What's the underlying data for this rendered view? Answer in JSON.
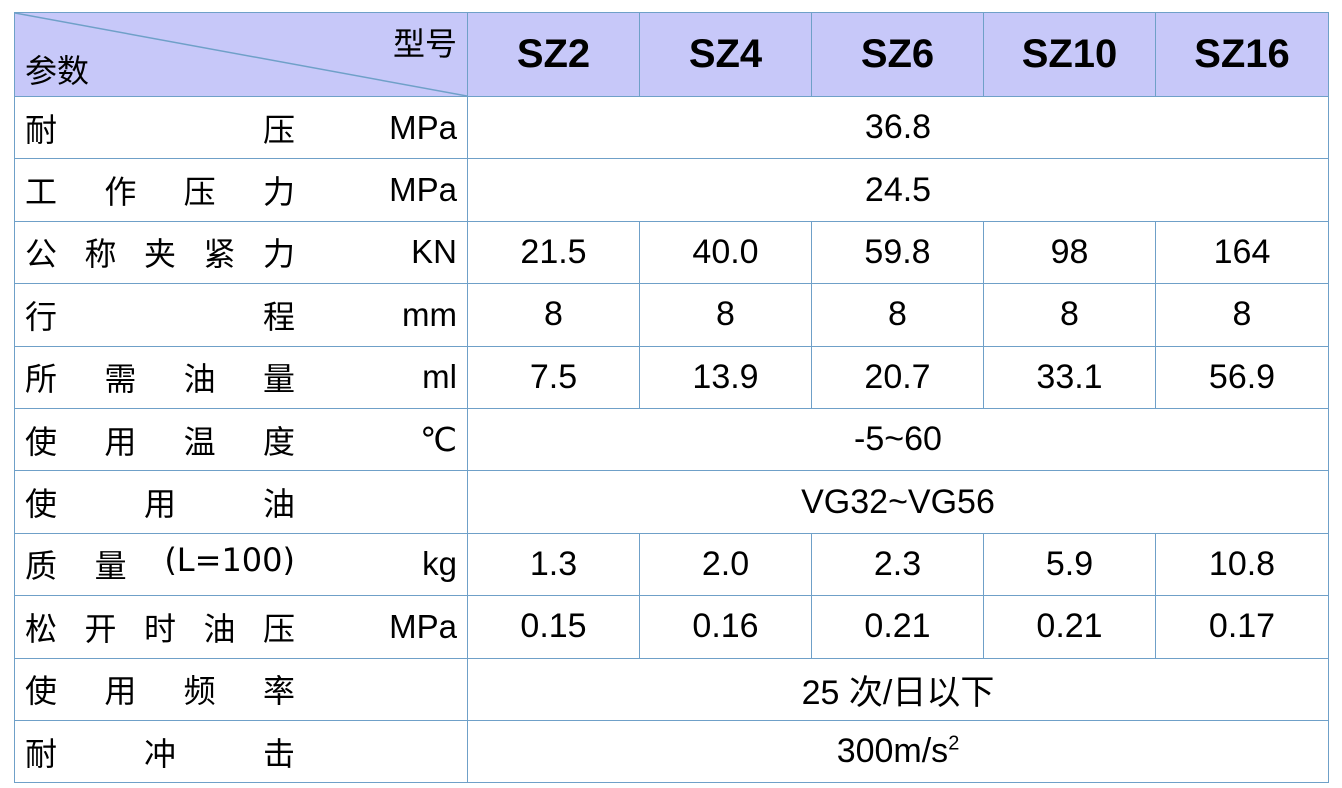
{
  "header": {
    "corner_top": "型号",
    "corner_bottom": "参数",
    "models": [
      "SZ2",
      "SZ4",
      "SZ6",
      "SZ10",
      "SZ16"
    ]
  },
  "rows": [
    {
      "name": [
        "耐",
        "压"
      ],
      "unit": "MPa",
      "span": "36.8"
    },
    {
      "name": [
        "工",
        "作",
        "压",
        "力"
      ],
      "unit": "MPa",
      "span": "24.5"
    },
    {
      "name": [
        "公",
        "称",
        "夹",
        "紧",
        "力"
      ],
      "unit": "KN",
      "values": [
        "21.5",
        "40.0",
        "59.8",
        "98",
        "164"
      ]
    },
    {
      "name": [
        "行",
        "程"
      ],
      "unit": "mm",
      "values": [
        "8",
        "8",
        "8",
        "8",
        "8"
      ]
    },
    {
      "name": [
        "所",
        "需",
        "油",
        "量"
      ],
      "unit": "ml",
      "values": [
        "7.5",
        "13.9",
        "20.7",
        "33.1",
        "56.9"
      ]
    },
    {
      "name": [
        "使",
        "用",
        "温",
        "度"
      ],
      "unit": "℃",
      "span": "-5~60"
    },
    {
      "name": [
        "使",
        "用",
        "油"
      ],
      "unit": "",
      "span": "VG32~VG56"
    },
    {
      "name": [
        "质",
        "量",
        "(L=100)"
      ],
      "unit": "kg",
      "values": [
        "1.3",
        "2.0",
        "2.3",
        "5.9",
        "10.8"
      ]
    },
    {
      "name": [
        "松",
        "开",
        "时",
        "油",
        "压"
      ],
      "unit": "MPa",
      "values": [
        "0.15",
        "0.16",
        "0.21",
        "0.21",
        "0.17"
      ]
    },
    {
      "name": [
        "使",
        "用",
        "频",
        "率"
      ],
      "unit": "",
      "span": "25 次/日以下"
    },
    {
      "name": [
        "耐",
        "冲",
        "击"
      ],
      "unit": "",
      "span": "300m/s",
      "sup": "2"
    }
  ]
}
